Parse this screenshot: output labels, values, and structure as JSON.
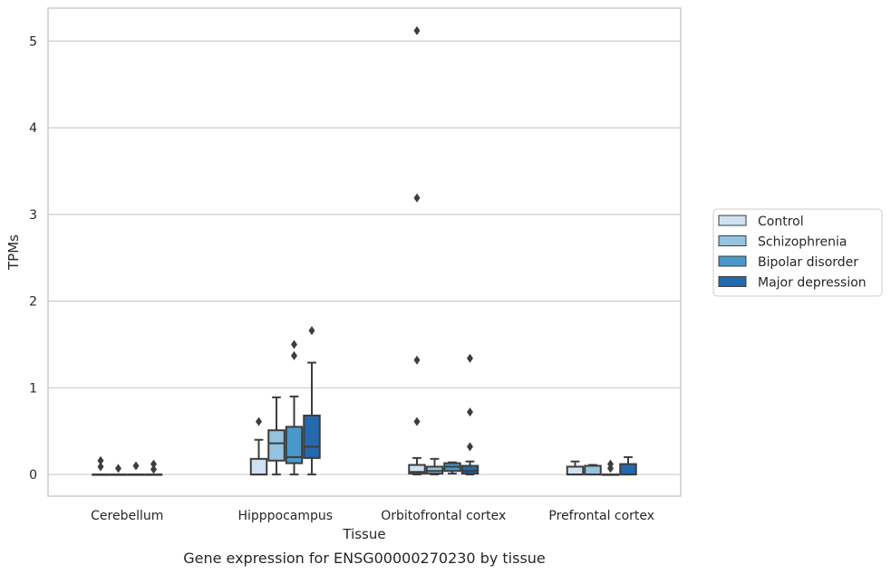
{
  "chart_data": {
    "type": "box",
    "title": "",
    "caption": "Gene expression for ENSG00000270230 by tissue",
    "xlabel": "Tissue",
    "ylabel": "TPMs",
    "ylim": [
      -0.25,
      5.38
    ],
    "yticks": [
      0,
      1,
      2,
      3,
      4,
      5
    ],
    "grid": "horizontal",
    "legend_position": "right",
    "categories": [
      "Cerebellum",
      "Hipppocampus",
      "Orbitofrontal cortex",
      "Prefrontal cortex"
    ],
    "series": [
      {
        "name": "Control",
        "color": "#d0e1f2",
        "boxes": [
          {
            "whislo": 0,
            "q1": 0,
            "med": 0,
            "q3": 0,
            "whishi": 0,
            "fliers": [
              0.16,
              0.09
            ]
          },
          {
            "whislo": 0,
            "q1": 0,
            "med": 0,
            "q3": 0.18,
            "whishi": 0.4,
            "fliers": [
              0.61
            ]
          },
          {
            "whislo": 0,
            "q1": 0.01,
            "med": 0.03,
            "q3": 0.11,
            "whishi": 0.19,
            "fliers": [
              5.12,
              3.19,
              1.32,
              0.61
            ]
          },
          {
            "whislo": 0,
            "q1": 0,
            "med": 0,
            "q3": 0.09,
            "whishi": 0.15,
            "fliers": []
          }
        ]
      },
      {
        "name": "Schizophrenia",
        "color": "#94c4df",
        "boxes": [
          {
            "whislo": 0,
            "q1": 0,
            "med": 0,
            "q3": 0,
            "whishi": 0,
            "fliers": [
              0.07
            ]
          },
          {
            "whislo": 0,
            "q1": 0.16,
            "med": 0.36,
            "q3": 0.51,
            "whishi": 0.89,
            "fliers": []
          },
          {
            "whislo": 0,
            "q1": 0.01,
            "med": 0.04,
            "q3": 0.09,
            "whishi": 0.18,
            "fliers": []
          },
          {
            "whislo": 0,
            "q1": 0,
            "med": 0,
            "q3": 0.1,
            "whishi": 0.11,
            "fliers": []
          }
        ]
      },
      {
        "name": "Bipolar disorder",
        "color": "#4a98c9",
        "boxes": [
          {
            "whislo": 0,
            "q1": 0,
            "med": 0,
            "q3": 0,
            "whishi": 0,
            "fliers": [
              0.1
            ]
          },
          {
            "whislo": 0,
            "q1": 0.13,
            "med": 0.2,
            "q3": 0.55,
            "whishi": 0.9,
            "fliers": [
              1.5,
              1.37
            ]
          },
          {
            "whislo": 0.01,
            "q1": 0.04,
            "med": 0.09,
            "q3": 0.13,
            "whishi": 0.14,
            "fliers": []
          },
          {
            "whislo": 0,
            "q1": 0,
            "med": 0,
            "q3": 0,
            "whishi": 0,
            "fliers": [
              0.12,
              0.07
            ]
          }
        ]
      },
      {
        "name": "Major depression",
        "color": "#2468ad",
        "boxes": [
          {
            "whislo": 0,
            "q1": 0,
            "med": 0,
            "q3": 0,
            "whishi": 0,
            "fliers": [
              0.12,
              0.06
            ]
          },
          {
            "whislo": 0,
            "q1": 0.19,
            "med": 0.32,
            "q3": 0.68,
            "whishi": 1.29,
            "fliers": [
              1.66
            ]
          },
          {
            "whislo": 0,
            "q1": 0.01,
            "med": 0.04,
            "q3": 0.1,
            "whishi": 0.15,
            "fliers": [
              1.34,
              0.72,
              0.32
            ]
          },
          {
            "whislo": 0,
            "q1": 0,
            "med": 0,
            "q3": 0.12,
            "whishi": 0.2,
            "fliers": []
          }
        ]
      }
    ]
  }
}
